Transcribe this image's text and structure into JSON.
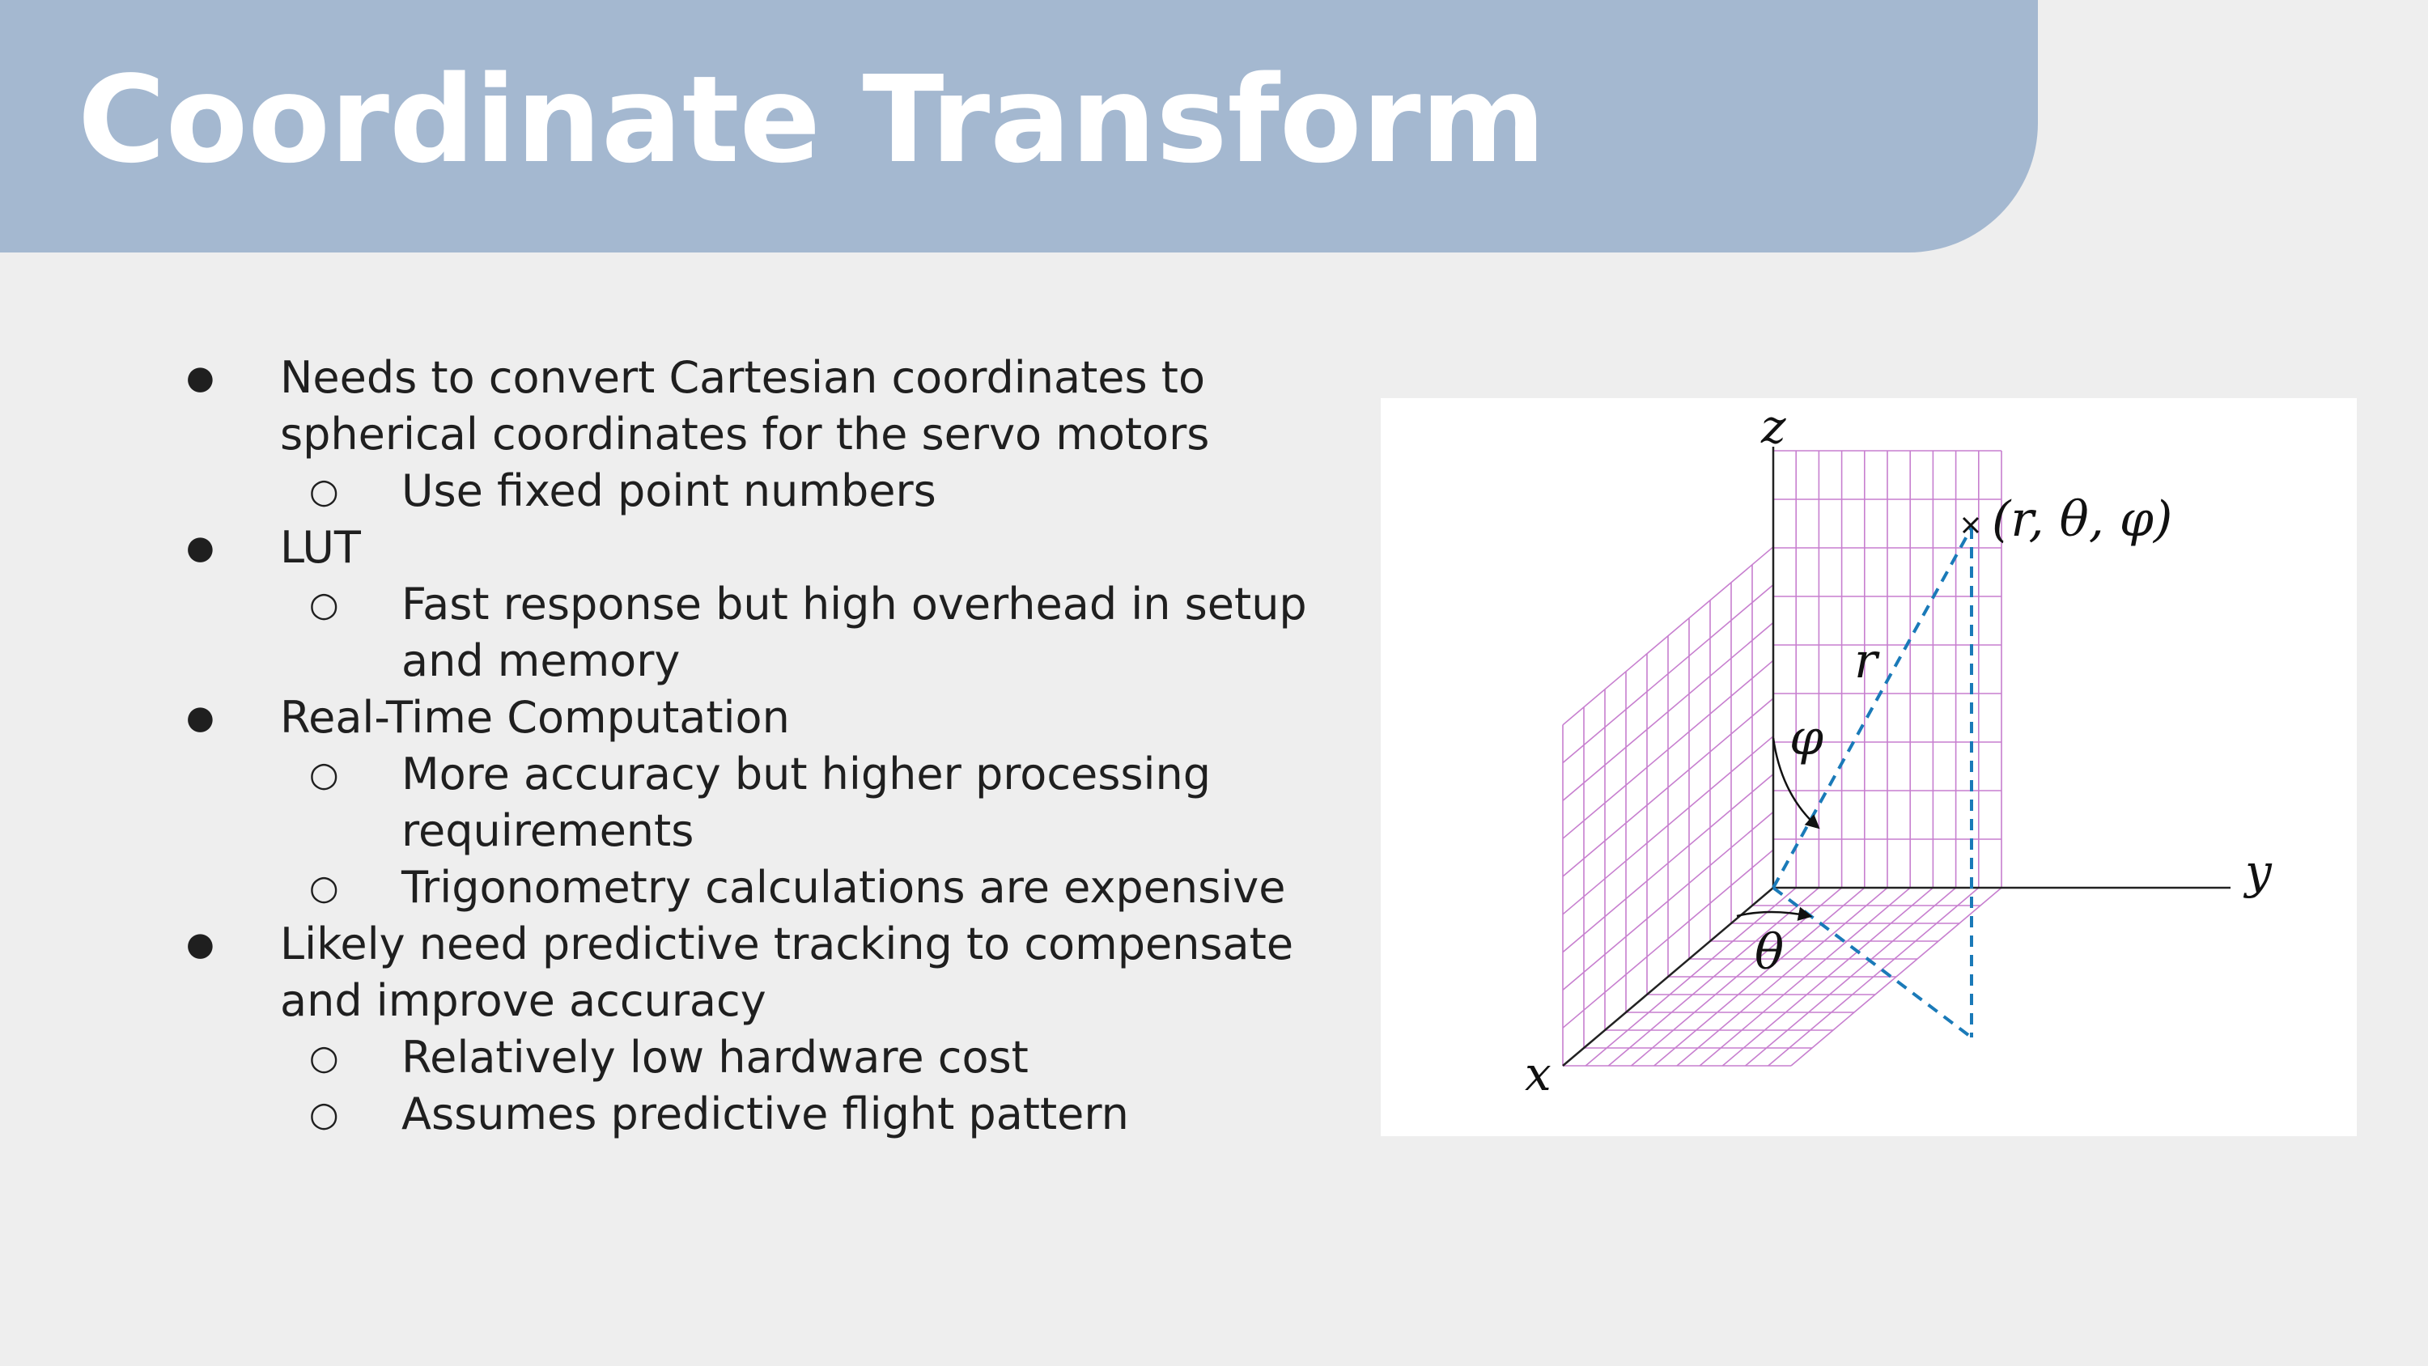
{
  "title": "Coordinate Transform",
  "bullets": [
    {
      "text": "Needs to convert Cartesian coordinates to spherical coordinates for the servo motors",
      "sub": [
        "Use fixed point numbers"
      ]
    },
    {
      "text": "LUT",
      "sub": [
        "Fast response but high overhead in setup and memory"
      ]
    },
    {
      "text": "Real-Time Computation",
      "sub": [
        "More accuracy but higher processing requirements",
        "Trigonometry calculations are expensive"
      ]
    },
    {
      "text": "Likely need predictive tracking to compensate and improve accuracy",
      "sub": [
        "Relatively low hardware cost",
        "Assumes predictive flight pattern"
      ]
    }
  ],
  "bullet_glyph": "●",
  "sub_glyph": "○",
  "figure": {
    "axis_x": "x",
    "axis_y": "y",
    "axis_z": "z",
    "point_label": "(r, θ, φ)",
    "r_label": "r",
    "theta_label": "θ",
    "phi_label": "φ",
    "grid_color": "#c77fcf",
    "dash_color": "#1a7ab8"
  },
  "colors": {
    "title_bar": "#a4b8d0",
    "background": "#eeeeee"
  }
}
